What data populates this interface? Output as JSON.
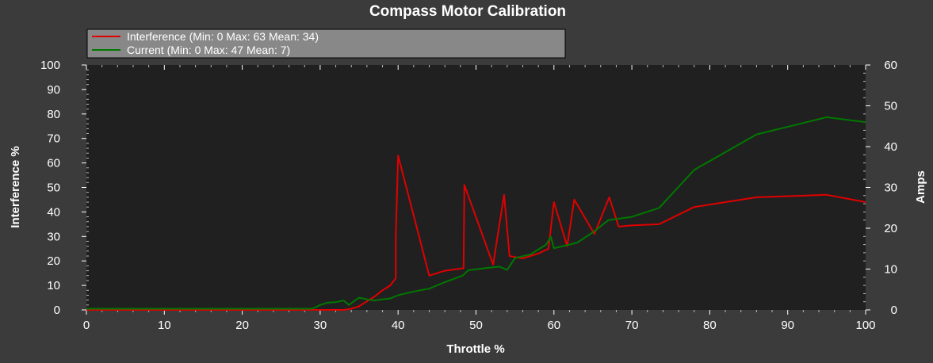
{
  "chart_data": {
    "type": "line",
    "title": "Compass Motor Calibration",
    "xlabel": "Throttle %",
    "ylabel": "Interference %",
    "y2label": "Amps",
    "xlim": [
      0,
      100
    ],
    "ylim": [
      0,
      100
    ],
    "y2lim": [
      0,
      60
    ],
    "xticks": [
      "0",
      "10",
      "20",
      "30",
      "40",
      "50",
      "60",
      "70",
      "80",
      "90",
      "100"
    ],
    "yticks": [
      "0",
      "10",
      "20",
      "30",
      "40",
      "50",
      "60",
      "70",
      "80",
      "90",
      "100"
    ],
    "y2ticks": [
      "0",
      "10",
      "20",
      "30",
      "40",
      "50",
      "60"
    ],
    "grid": false,
    "legend_position": "top-left",
    "colors": {
      "background": "#3b3b3b",
      "plot_background": "#202020",
      "legend_background": "#888888",
      "interference": "#e00000",
      "current": "#007800"
    },
    "series": [
      {
        "name": "Interference (Min: 0 Max: 63 Mean: 34)",
        "axis": "left",
        "color": "#e00000",
        "points": [
          [
            0,
            0
          ],
          [
            29,
            0
          ],
          [
            30,
            0
          ],
          [
            31,
            0
          ],
          [
            32,
            0
          ],
          [
            33,
            0
          ],
          [
            34,
            0.5
          ],
          [
            35,
            1.5
          ],
          [
            36,
            3.5
          ],
          [
            37,
            5.5
          ],
          [
            38,
            8
          ],
          [
            39,
            10
          ],
          [
            39.7,
            13
          ],
          [
            39.7,
            30
          ],
          [
            40,
            63
          ],
          [
            44,
            14
          ],
          [
            46,
            16
          ],
          [
            48.3,
            17
          ],
          [
            48.4,
            17
          ],
          [
            48.5,
            51
          ],
          [
            52.2,
            18.5
          ],
          [
            53.6,
            47
          ],
          [
            54.3,
            22
          ],
          [
            56,
            21
          ],
          [
            58,
            23
          ],
          [
            59.3,
            25
          ],
          [
            60,
            44
          ],
          [
            61.7,
            26
          ],
          [
            62.6,
            45
          ],
          [
            65.2,
            31
          ],
          [
            67.1,
            46
          ],
          [
            68.3,
            34
          ],
          [
            70,
            34.5
          ],
          [
            73.5,
            35
          ],
          [
            78,
            42
          ],
          [
            86,
            46
          ],
          [
            95,
            47
          ],
          [
            100,
            44
          ]
        ]
      },
      {
        "name": "Current (Min: 0 Max: 47 Mean: 7)",
        "axis": "right",
        "color": "#007800",
        "points": [
          [
            0,
            0.3
          ],
          [
            29,
            0.3
          ],
          [
            30,
            1.2
          ],
          [
            31,
            1.8
          ],
          [
            32,
            1.9
          ],
          [
            33,
            2.3
          ],
          [
            33.7,
            1.2
          ],
          [
            34.3,
            2.1
          ],
          [
            35,
            3
          ],
          [
            36,
            2.6
          ],
          [
            37,
            2.3
          ],
          [
            38,
            2.6
          ],
          [
            39,
            2.8
          ],
          [
            39.5,
            3.2
          ],
          [
            40,
            3.6
          ],
          [
            42,
            4.5
          ],
          [
            44,
            5.2
          ],
          [
            46,
            6.8
          ],
          [
            48.3,
            8.4
          ],
          [
            49,
            9.7
          ],
          [
            51,
            10.2
          ],
          [
            53,
            10.6
          ],
          [
            54,
            9.8
          ],
          [
            55,
            12.7
          ],
          [
            57,
            13.6
          ],
          [
            59,
            16
          ],
          [
            59.6,
            17.9
          ],
          [
            60,
            15.1
          ],
          [
            62,
            16
          ],
          [
            63,
            16.5
          ],
          [
            65,
            19
          ],
          [
            67,
            22
          ],
          [
            70,
            22.8
          ],
          [
            73.5,
            25
          ],
          [
            78,
            34.3
          ],
          [
            86,
            43
          ],
          [
            95,
            47.2
          ],
          [
            100,
            46
          ]
        ]
      }
    ]
  }
}
